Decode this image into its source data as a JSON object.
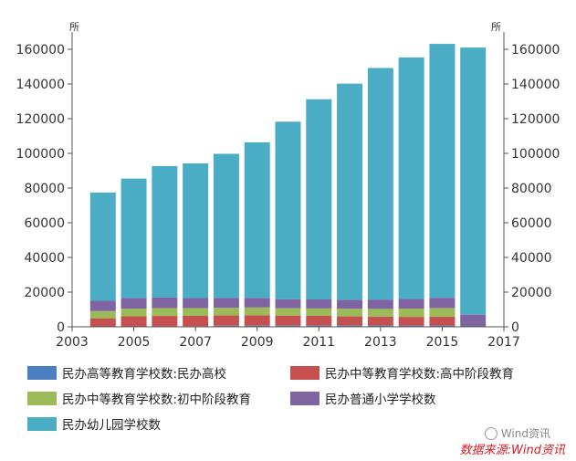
{
  "chart_data": {
    "type": "bar",
    "stacked": true,
    "x_axis": {
      "min": 2003,
      "max": 2017,
      "tick_labels": [
        "2003",
        "2005",
        "2007",
        "2009",
        "2011",
        "2013",
        "2015",
        "2017"
      ]
    },
    "y_axis": {
      "min": 0,
      "max": 170000,
      "unit": "所",
      "tick_labels": [
        "0",
        "20000",
        "40000",
        "60000",
        "80000",
        "100000",
        "120000",
        "140000",
        "160000"
      ]
    },
    "categories": [
      "2004",
      "2005",
      "2006",
      "2007",
      "2008",
      "2009",
      "2010",
      "2011",
      "2012",
      "2013",
      "2014",
      "2015",
      "2016"
    ],
    "series": [
      {
        "name": "民办高等教育学校数:民办高校",
        "color": "#4a7fc1",
        "values": [
          230,
          250,
          280,
          300,
          640,
          660,
          680,
          700,
          710,
          720,
          730,
          730,
          null
        ]
      },
      {
        "name": "民办中等教育学校数:高中阶段教育",
        "color": "#c5504f",
        "values": [
          4700,
          5800,
          6000,
          6000,
          5900,
          6000,
          5800,
          5600,
          5300,
          5100,
          5000,
          5100,
          null
        ]
      },
      {
        "name": "民办中等教育学校数:初中阶段教育",
        "color": "#9bbb59",
        "values": [
          4100,
          4400,
          4500,
          4500,
          4400,
          4500,
          4200,
          4300,
          4400,
          4500,
          4800,
          5000,
          null
        ]
      },
      {
        "name": "民办普通小学学校数",
        "color": "#8064a2",
        "values": [
          6000,
          6200,
          6200,
          5800,
          5700,
          5500,
          5300,
          5200,
          5200,
          5400,
          5500,
          5900,
          7000
        ]
      },
      {
        "name": "民办幼儿园学校数",
        "color": "#4bacc6",
        "values": [
          62400,
          68800,
          75700,
          77600,
          83100,
          89700,
          102300,
          115400,
          124600,
          133500,
          139300,
          146400,
          154000
        ]
      }
    ]
  },
  "watermark": "Wind资讯",
  "source": "数据来源:Wind资讯"
}
